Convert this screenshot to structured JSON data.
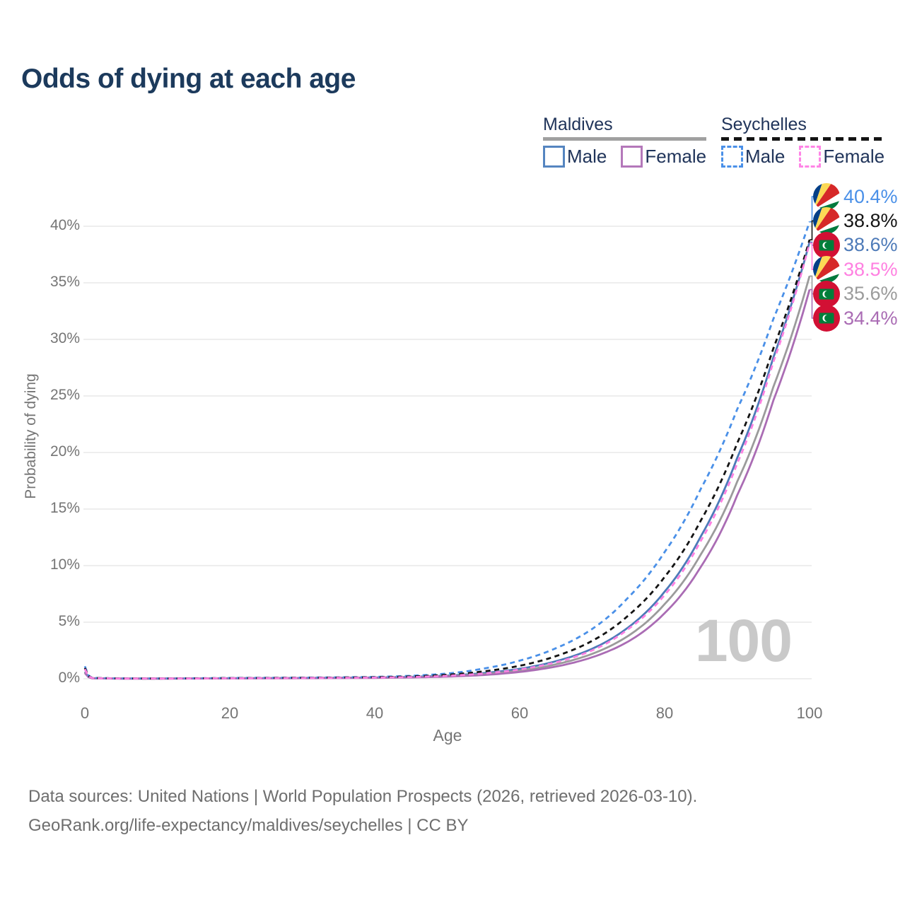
{
  "title": "Odds of dying at each age",
  "legend": {
    "groups": [
      {
        "name": "Maldives",
        "line_style": "solid",
        "underline_color": "#a0a0a0",
        "items": [
          {
            "label": "Male",
            "color": "#5585c0",
            "dashed": false
          },
          {
            "label": "Female",
            "color": "#b478ba",
            "dashed": false
          }
        ]
      },
      {
        "name": "Seychelles",
        "line_style": "dashed",
        "underline_color": "#141414",
        "items": [
          {
            "label": "Male",
            "color": "#4a90e8",
            "dashed": true
          },
          {
            "label": "Female",
            "color": "#ff85e6",
            "dashed": true
          }
        ]
      }
    ]
  },
  "chart_data": {
    "type": "line",
    "title": "Odds of dying at each age",
    "xlabel": "Age",
    "ylabel": "Probability of dying",
    "xlim": [
      0,
      100
    ],
    "ylim": [
      0,
      42
    ],
    "x_ticks": [
      0,
      20,
      40,
      60,
      80,
      100
    ],
    "y_ticks": [
      0,
      5,
      10,
      15,
      20,
      25,
      30,
      35,
      40
    ],
    "y_tick_suffix": "%",
    "grid": "horizontal-only",
    "legend_position": "top-right",
    "watermark": "100",
    "series": [
      {
        "name": "Maldives Male",
        "country": "Maldives",
        "sex": "Male",
        "color": "#4d7ab8",
        "dashed": false,
        "flag": "maldives",
        "end_label": "38.6%",
        "end_value": 38.6,
        "points": [
          [
            0,
            0.62
          ],
          [
            1,
            0.05
          ],
          [
            5,
            0.02
          ],
          [
            10,
            0.018
          ],
          [
            20,
            0.048
          ],
          [
            30,
            0.072
          ],
          [
            40,
            0.11
          ],
          [
            45,
            0.17
          ],
          [
            50,
            0.28
          ],
          [
            55,
            0.5
          ],
          [
            60,
            0.88
          ],
          [
            65,
            1.55
          ],
          [
            70,
            2.65
          ],
          [
            75,
            4.55
          ],
          [
            80,
            7.7
          ],
          [
            85,
            12.6
          ],
          [
            90,
            19.5
          ],
          [
            95,
            28.4
          ],
          [
            100,
            38.6
          ]
        ]
      },
      {
        "name": "Maldives Both sexes",
        "country": "Maldives",
        "sex": "Both",
        "color": "#9b9b9b",
        "dashed": false,
        "flag": "maldives",
        "end_label": "35.6%",
        "end_value": 35.6,
        "points": [
          [
            0,
            0.56
          ],
          [
            1,
            0.045
          ],
          [
            5,
            0.017
          ],
          [
            10,
            0.015
          ],
          [
            20,
            0.038
          ],
          [
            30,
            0.058
          ],
          [
            40,
            0.092
          ],
          [
            45,
            0.14
          ],
          [
            50,
            0.23
          ],
          [
            55,
            0.41
          ],
          [
            60,
            0.72
          ],
          [
            65,
            1.28
          ],
          [
            70,
            2.2
          ],
          [
            75,
            3.8
          ],
          [
            80,
            6.6
          ],
          [
            85,
            11.0
          ],
          [
            90,
            17.4
          ],
          [
            95,
            25.8
          ],
          [
            100,
            35.6
          ]
        ]
      },
      {
        "name": "Maldives Female",
        "country": "Maldives",
        "sex": "Female",
        "color": "#aa6cb4",
        "dashed": false,
        "flag": "maldives",
        "end_label": "34.4%",
        "end_value": 34.4,
        "points": [
          [
            0,
            0.5
          ],
          [
            1,
            0.04
          ],
          [
            5,
            0.015
          ],
          [
            10,
            0.013
          ],
          [
            20,
            0.03
          ],
          [
            30,
            0.048
          ],
          [
            40,
            0.078
          ],
          [
            45,
            0.115
          ],
          [
            50,
            0.19
          ],
          [
            55,
            0.33
          ],
          [
            60,
            0.6
          ],
          [
            65,
            1.08
          ],
          [
            70,
            1.9
          ],
          [
            75,
            3.3
          ],
          [
            80,
            5.8
          ],
          [
            85,
            9.9
          ],
          [
            90,
            16.2
          ],
          [
            95,
            24.6
          ],
          [
            100,
            34.4
          ]
        ]
      },
      {
        "name": "Seychelles Male",
        "country": "Seychelles",
        "sex": "Male",
        "color": "#4a90e8",
        "dashed": true,
        "flag": "seychelles",
        "end_label": "40.4%",
        "end_value": 40.4,
        "points": [
          [
            0,
            1.1
          ],
          [
            1,
            0.08
          ],
          [
            5,
            0.03
          ],
          [
            10,
            0.025
          ],
          [
            20,
            0.07
          ],
          [
            30,
            0.1
          ],
          [
            40,
            0.16
          ],
          [
            45,
            0.26
          ],
          [
            50,
            0.46
          ],
          [
            55,
            0.9
          ],
          [
            60,
            1.6
          ],
          [
            65,
            2.7
          ],
          [
            70,
            4.4
          ],
          [
            75,
            7.2
          ],
          [
            80,
            11.2
          ],
          [
            85,
            16.8
          ],
          [
            90,
            23.8
          ],
          [
            95,
            31.8
          ],
          [
            100,
            40.4
          ]
        ]
      },
      {
        "name": "Seychelles Both sexes",
        "country": "Seychelles",
        "sex": "Both",
        "color": "#141414",
        "dashed": true,
        "flag": "seychelles",
        "end_label": "38.8%",
        "end_value": 38.8,
        "points": [
          [
            0,
            0.95
          ],
          [
            1,
            0.07
          ],
          [
            5,
            0.025
          ],
          [
            10,
            0.02
          ],
          [
            20,
            0.055
          ],
          [
            30,
            0.085
          ],
          [
            40,
            0.13
          ],
          [
            45,
            0.2
          ],
          [
            50,
            0.35
          ],
          [
            55,
            0.65
          ],
          [
            60,
            1.15
          ],
          [
            65,
            2.0
          ],
          [
            70,
            3.35
          ],
          [
            75,
            5.6
          ],
          [
            80,
            9.0
          ],
          [
            85,
            14.0
          ],
          [
            90,
            20.8
          ],
          [
            95,
            29.2
          ],
          [
            100,
            38.8
          ]
        ]
      },
      {
        "name": "Seychelles Female",
        "country": "Seychelles",
        "sex": "Female",
        "color": "#ff80e1",
        "dashed": true,
        "flag": "seychelles",
        "end_label": "38.5%",
        "end_value": 38.5,
        "points": [
          [
            0,
            0.85
          ],
          [
            1,
            0.06
          ],
          [
            5,
            0.02
          ],
          [
            10,
            0.017
          ],
          [
            20,
            0.042
          ],
          [
            30,
            0.065
          ],
          [
            40,
            0.1
          ],
          [
            45,
            0.15
          ],
          [
            50,
            0.26
          ],
          [
            55,
            0.46
          ],
          [
            60,
            0.82
          ],
          [
            65,
            1.45
          ],
          [
            70,
            2.5
          ],
          [
            75,
            4.4
          ],
          [
            80,
            7.4
          ],
          [
            85,
            12.2
          ],
          [
            90,
            19.0
          ],
          [
            95,
            28.0
          ],
          [
            100,
            38.5
          ]
        ]
      }
    ]
  },
  "footer": {
    "line1": "Data sources: United Nations | World Population Prospects (2026, retrieved 2026-03-10).",
    "line2": "GeoRank.org/life-expectancy/maldives/seychelles | CC BY"
  }
}
